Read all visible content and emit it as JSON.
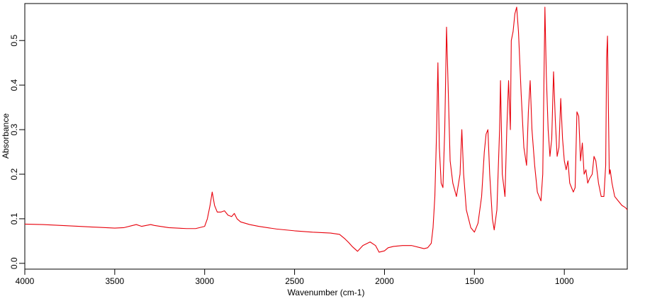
{
  "chart_data": {
    "type": "line",
    "xlabel": "Wavenumber (cm-1)",
    "ylabel": "Absorbance",
    "xlim": [
      4000,
      650
    ],
    "ylim": [
      -0.013,
      0.583
    ],
    "xticks": [
      4000,
      3500,
      3000,
      2500,
      2000,
      1500,
      1000
    ],
    "yticks": [
      {
        "value": 0,
        "label": "0.0"
      },
      0.1,
      0.2,
      0.3,
      0.4,
      0.5
    ],
    "x": [
      4000,
      3900,
      3800,
      3700,
      3600,
      3500,
      3450,
      3400,
      3380,
      3350,
      3300,
      3280,
      3200,
      3100,
      3050,
      3000,
      2985,
      2970,
      2958,
      2945,
      2930,
      2910,
      2890,
      2870,
      2850,
      2835,
      2820,
      2800,
      2750,
      2700,
      2600,
      2500,
      2400,
      2300,
      2250,
      2220,
      2200,
      2180,
      2150,
      2120,
      2080,
      2050,
      2030,
      2000,
      1980,
      1950,
      1900,
      1850,
      1800,
      1780,
      1760,
      1740,
      1730,
      1720,
      1710,
      1703,
      1695,
      1685,
      1675,
      1665,
      1655,
      1645,
      1635,
      1620,
      1600,
      1580,
      1570,
      1560,
      1545,
      1520,
      1500,
      1480,
      1460,
      1445,
      1435,
      1425,
      1415,
      1400,
      1390,
      1375,
      1360,
      1355,
      1345,
      1330,
      1320,
      1310,
      1300,
      1295,
      1285,
      1275,
      1265,
      1255,
      1240,
      1225,
      1210,
      1200,
      1190,
      1180,
      1165,
      1150,
      1130,
      1120,
      1113,
      1108,
      1100,
      1090,
      1080,
      1070,
      1060,
      1050,
      1040,
      1030,
      1020,
      1010,
      1000,
      990,
      980,
      970,
      960,
      950,
      940,
      930,
      920,
      910,
      900,
      890,
      880,
      870,
      860,
      845,
      835,
      825,
      810,
      795,
      780,
      770,
      765,
      760,
      755,
      750,
      745,
      735,
      720,
      700,
      680,
      660,
      650
    ],
    "series": [
      {
        "color": "#e8000b",
        "values": [
          0.088,
          0.087,
          0.085,
          0.083,
          0.081,
          0.079,
          0.08,
          0.085,
          0.087,
          0.083,
          0.087,
          0.085,
          0.08,
          0.078,
          0.078,
          0.083,
          0.1,
          0.13,
          0.16,
          0.13,
          0.115,
          0.115,
          0.118,
          0.108,
          0.105,
          0.112,
          0.1,
          0.093,
          0.087,
          0.083,
          0.077,
          0.073,
          0.07,
          0.068,
          0.065,
          0.055,
          0.047,
          0.038,
          0.027,
          0.04,
          0.048,
          0.04,
          0.025,
          0.028,
          0.035,
          0.038,
          0.04,
          0.04,
          0.035,
          0.033,
          0.035,
          0.045,
          0.08,
          0.15,
          0.3,
          0.45,
          0.26,
          0.18,
          0.17,
          0.3,
          0.53,
          0.38,
          0.23,
          0.18,
          0.15,
          0.2,
          0.3,
          0.2,
          0.12,
          0.08,
          0.07,
          0.09,
          0.15,
          0.25,
          0.29,
          0.3,
          0.2,
          0.1,
          0.075,
          0.12,
          0.3,
          0.41,
          0.2,
          0.15,
          0.3,
          0.41,
          0.3,
          0.5,
          0.52,
          0.56,
          0.575,
          0.52,
          0.38,
          0.26,
          0.22,
          0.34,
          0.41,
          0.3,
          0.22,
          0.16,
          0.14,
          0.2,
          0.42,
          0.575,
          0.42,
          0.3,
          0.24,
          0.28,
          0.43,
          0.32,
          0.24,
          0.26,
          0.37,
          0.28,
          0.23,
          0.21,
          0.23,
          0.18,
          0.17,
          0.16,
          0.17,
          0.34,
          0.33,
          0.23,
          0.27,
          0.2,
          0.21,
          0.18,
          0.19,
          0.2,
          0.24,
          0.23,
          0.18,
          0.15,
          0.15,
          0.22,
          0.46,
          0.51,
          0.35,
          0.2,
          0.21,
          0.18,
          0.15,
          0.14,
          0.13,
          0.125,
          0.12
        ]
      }
    ]
  }
}
